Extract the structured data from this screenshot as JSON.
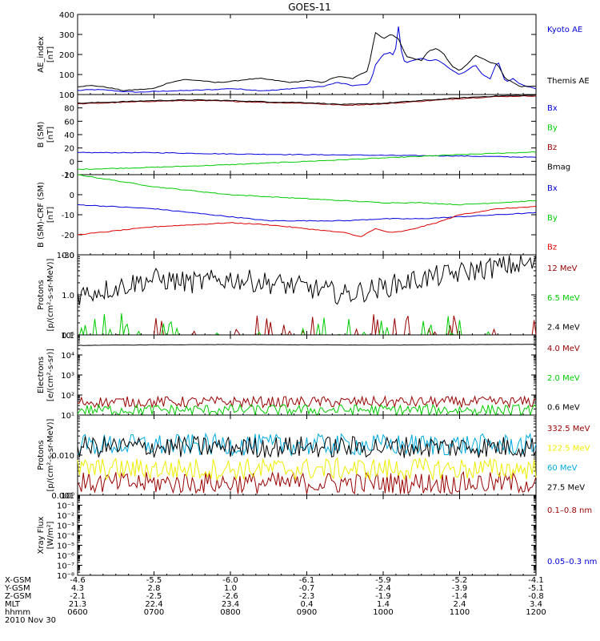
{
  "title": "GOES-11",
  "colors": {
    "black": "#000000",
    "blue": "#0000dd",
    "green": "#00cc00",
    "red": "#bb0000",
    "darkred": "#990000",
    "yellow": "#eeee00",
    "cyan": "#00aadd"
  },
  "chart_data": [
    {
      "type": "line",
      "ylabel": [
        "AE_index",
        "[nT]"
      ],
      "ylim": [
        0,
        400
      ],
      "scale": "linear",
      "ticks": [
        0,
        100,
        200,
        300,
        400
      ],
      "tick_labels": [
        "0",
        "100",
        "200",
        "300",
        "400"
      ],
      "series": [
        {
          "name": "Kyoto AE",
          "color": "#0000dd",
          "x": [
            6.0,
            6.2,
            6.4,
            6.6,
            6.8,
            7.0,
            7.2,
            7.4,
            7.6,
            7.8,
            8.0,
            8.2,
            8.4,
            8.6,
            8.8,
            9.0,
            9.2,
            9.4,
            9.6,
            9.8,
            9.85,
            9.9,
            10.0,
            10.1,
            10.15,
            10.2,
            10.25,
            10.3,
            10.4,
            10.5,
            10.6,
            10.7,
            10.8,
            10.9,
            11.0,
            11.1,
            11.2,
            11.3,
            11.4,
            11.5,
            11.6,
            11.7,
            11.8,
            12.0
          ],
          "y": [
            20,
            25,
            22,
            15,
            12,
            15,
            18,
            20,
            22,
            25,
            30,
            25,
            20,
            22,
            30,
            35,
            40,
            60,
            45,
            50,
            80,
            150,
            200,
            210,
            190,
            340,
            180,
            160,
            170,
            180,
            170,
            175,
            150,
            120,
            100,
            120,
            150,
            100,
            80,
            170,
            60,
            80,
            50,
            30
          ]
        },
        {
          "name": "Themis AE",
          "color": "#000000",
          "x": [
            6.0,
            6.2,
            6.4,
            6.6,
            6.8,
            7.0,
            7.2,
            7.4,
            7.6,
            7.8,
            8.0,
            8.2,
            8.4,
            8.6,
            8.8,
            9.0,
            9.2,
            9.4,
            9.6,
            9.8,
            9.85,
            9.9,
            10.0,
            10.1,
            10.2,
            10.3,
            10.4,
            10.5,
            10.6,
            10.7,
            10.8,
            10.9,
            11.0,
            11.1,
            11.2,
            11.3,
            11.4,
            11.5,
            11.6,
            11.7,
            11.8,
            12.0
          ],
          "y": [
            40,
            45,
            35,
            20,
            25,
            30,
            60,
            75,
            70,
            60,
            65,
            75,
            80,
            70,
            60,
            70,
            60,
            90,
            80,
            120,
            220,
            310,
            280,
            300,
            280,
            190,
            180,
            170,
            220,
            230,
            200,
            140,
            120,
            150,
            195,
            180,
            160,
            150,
            80,
            60,
            40,
            40
          ]
        }
      ]
    },
    {
      "type": "line",
      "ylabel": [
        "B (SM)",
        "[nT]"
      ],
      "ylim": [
        -20,
        100
      ],
      "scale": "linear",
      "ticks": [
        -20,
        0,
        20,
        40,
        60,
        80,
        100
      ],
      "tick_labels": [
        "-20",
        "0",
        "20",
        "40",
        "60",
        "80",
        "100"
      ],
      "series": [
        {
          "name": "Bx",
          "color": "#0000dd",
          "x": [
            6.0,
            7.0,
            8.0,
            9.0,
            10.0,
            11.0,
            12.0
          ],
          "y": [
            13,
            13,
            11,
            10,
            9,
            8,
            6
          ]
        },
        {
          "name": "By",
          "color": "#00cc00",
          "x": [
            6.0,
            7.0,
            8.0,
            9.0,
            10.0,
            11.0,
            12.0
          ],
          "y": [
            -12,
            -9,
            -5,
            0,
            5,
            10,
            14
          ]
        },
        {
          "name": "Bz",
          "color": "#990000",
          "x": [
            6.0,
            6.5,
            7.0,
            7.5,
            8.0,
            8.5,
            9.0,
            9.5,
            10.0,
            10.5,
            11.0,
            11.5,
            12.0
          ],
          "y": [
            86,
            88,
            90,
            91,
            90,
            88,
            87,
            84,
            86,
            90,
            94,
            97,
            98
          ]
        },
        {
          "name": "Bmag",
          "color": "#000000",
          "x": [
            6.0,
            6.5,
            7.0,
            7.5,
            8.0,
            8.5,
            9.0,
            9.5,
            10.0,
            10.5,
            11.0,
            11.5,
            12.0
          ],
          "y": [
            87,
            89,
            91,
            92,
            91,
            89,
            88,
            85,
            87,
            91,
            95,
            98,
            99
          ]
        }
      ]
    },
    {
      "type": "line",
      "ylabel": [
        "B (SM)-CRF (SM)",
        "[nT]"
      ],
      "ylim": [
        -30,
        10
      ],
      "scale": "linear",
      "ticks": [
        -30,
        -20,
        -10,
        0,
        10
      ],
      "tick_labels": [
        "-30",
        "-20",
        "-10",
        "0",
        "10"
      ],
      "series": [
        {
          "name": "Bx",
          "color": "#0000dd",
          "x": [
            6.0,
            6.5,
            7.0,
            7.5,
            8.0,
            8.5,
            9.0,
            9.5,
            10.0,
            10.5,
            11.0,
            11.5,
            12.0
          ],
          "y": [
            -5,
            -6,
            -7,
            -9,
            -11,
            -13,
            -13,
            -13,
            -12,
            -12,
            -11,
            -10,
            -9
          ]
        },
        {
          "name": "By",
          "color": "#00cc00",
          "x": [
            6.0,
            6.5,
            7.0,
            7.5,
            8.0,
            8.5,
            9.0,
            9.5,
            10.0,
            10.5,
            11.0,
            11.5,
            12.0
          ],
          "y": [
            10,
            7,
            4,
            2,
            0,
            -1,
            -2,
            -3,
            -4,
            -4,
            -5,
            -4,
            -3
          ]
        },
        {
          "name": "Bz",
          "color": "#dd0000",
          "x": [
            6.0,
            6.5,
            7.0,
            7.5,
            8.0,
            8.5,
            9.0,
            9.5,
            9.7,
            9.9,
            10.1,
            10.3,
            10.5,
            10.7,
            11.0,
            11.5,
            12.0
          ],
          "y": [
            -20,
            -18,
            -16,
            -15,
            -14,
            -15,
            -17,
            -19,
            -21,
            -17,
            -19,
            -18,
            -16,
            -14,
            -10,
            -7,
            -6
          ]
        }
      ]
    },
    {
      "type": "line",
      "ylabel": [
        "Protons",
        "[p/(cm²-s-sr-MeV)]"
      ],
      "ylim": [
        0.1,
        10
      ],
      "scale": "log",
      "ticks": [
        0.1,
        1,
        10
      ],
      "tick_labels": [
        "0.1",
        "1.0",
        "10.0"
      ],
      "series": [
        {
          "name": "12 MeV",
          "color": "#990000",
          "noise": "sparse",
          "x": [
            6.0,
            12.0
          ],
          "y": [
            0.1,
            0.1
          ]
        },
        {
          "name": "6.5 MeV",
          "color": "#00cc00",
          "noise": "sparse",
          "x": [
            6.0,
            12.0
          ],
          "y": [
            0.1,
            0.1
          ]
        },
        {
          "name": "2.4 MeV",
          "color": "#000000",
          "noise": "log",
          "x": [
            6.0,
            6.5,
            7.0,
            7.5,
            8.0,
            8.5,
            9.0,
            9.5,
            10.0,
            10.5,
            11.0,
            11.5,
            12.0
          ],
          "y": [
            1.0,
            1.5,
            2.5,
            2.0,
            2.5,
            2.0,
            1.5,
            1.0,
            1.5,
            2.5,
            3.5,
            5.0,
            6.0
          ]
        }
      ]
    },
    {
      "type": "line",
      "ylabel": [
        "Electrons",
        "[e/(cm²-s-sr)]"
      ],
      "ylim": [
        10,
        100000
      ],
      "scale": "log",
      "ticks": [
        10,
        100,
        1000,
        10000,
        100000
      ],
      "tick_labels": [
        "10¹",
        "10²",
        "10³",
        "10⁴",
        "10⁵"
      ],
      "series": [
        {
          "name": "4.0 MeV",
          "color": "#990000",
          "noise": "log",
          "x": [
            6.0,
            12.0
          ],
          "y": [
            45,
            45
          ]
        },
        {
          "name": "2.0 MeV",
          "color": "#00cc00",
          "noise": "log",
          "x": [
            6.0,
            12.0
          ],
          "y": [
            18,
            18
          ]
        },
        {
          "name": "0.6 MeV",
          "color": "#000000",
          "x": [
            6.0,
            7.0,
            8.0,
            9.0,
            10.0,
            11.0,
            12.0
          ],
          "y": [
            30000,
            32000,
            33000,
            32000,
            31000,
            33000,
            34000
          ]
        }
      ]
    },
    {
      "type": "line",
      "ylabel": [
        "Protons",
        "[p/(cm²-s-sr-MeV)]"
      ],
      "ylim": [
        0.001,
        0.1
      ],
      "scale": "log",
      "ticks": [
        0.001,
        0.01,
        0.1
      ],
      "tick_labels": [
        "0.001",
        "0.010",
        ""
      ],
      "series": [
        {
          "name": "332.5 MeV",
          "color": "#990000",
          "noise": "log",
          "x": [
            6.0,
            12.0
          ],
          "y": [
            0.002,
            0.002
          ]
        },
        {
          "name": "122.5 MeV",
          "color": "#eeee00",
          "noise": "log",
          "x": [
            6.0,
            12.0
          ],
          "y": [
            0.0045,
            0.0045
          ]
        },
        {
          "name": "60 MeV",
          "color": "#00aadd",
          "noise": "log",
          "x": [
            6.0,
            12.0
          ],
          "y": [
            0.018,
            0.018
          ]
        },
        {
          "name": "27.5 MeV",
          "color": "#000000",
          "noise": "log",
          "x": [
            6.0,
            12.0
          ],
          "y": [
            0.016,
            0.016
          ]
        }
      ]
    },
    {
      "type": "line",
      "ylabel": [
        "Xray Flux",
        "[W/m²]"
      ],
      "ylim": [
        1e-08,
        1
      ],
      "scale": "log",
      "ticks": [
        1e-08,
        1e-07,
        1e-06,
        1e-05,
        0.0001,
        0.001,
        0.01,
        0.1,
        1
      ],
      "tick_labels": [
        "10⁻⁸",
        "10⁻⁷",
        "10⁻⁶",
        "10⁻⁵",
        "10⁻⁴",
        "10⁻³",
        "10⁻²",
        "10⁻¹",
        "10⁰"
      ],
      "series": [
        {
          "name": "0.1–0.8 nm",
          "color": "#990000",
          "x": [],
          "y": []
        },
        {
          "name": "0.05–0.3 nm",
          "color": "#0000dd",
          "x": [],
          "y": []
        }
      ]
    }
  ],
  "x_axis": {
    "xlim": [
      6,
      12
    ],
    "rows": [
      {
        "label": "X-GSM",
        "values": [
          "-4.6",
          "-5.5",
          "-6.0",
          "-6.1",
          "-5.9",
          "-5.2",
          "-4.1"
        ]
      },
      {
        "label": "Y-GSM",
        "values": [
          "4.3",
          "2.8",
          "1.0",
          "-0.7",
          "-2.4",
          "-3.9",
          "-5.1"
        ]
      },
      {
        "label": "Z-GSM",
        "values": [
          "-2.1",
          "-2.5",
          "-2.6",
          "-2.3",
          "-1.9",
          "-1.4",
          "-0.8"
        ]
      },
      {
        "label": "MLT",
        "values": [
          "21.3",
          "22.4",
          "23.4",
          "0.4",
          "1.4",
          "2.4",
          "3.4"
        ]
      },
      {
        "label": "hhmm",
        "values": [
          "0600",
          "0700",
          "0800",
          "0900",
          "1000",
          "1100",
          "1200"
        ]
      }
    ],
    "date": "2010 Nov 30"
  }
}
